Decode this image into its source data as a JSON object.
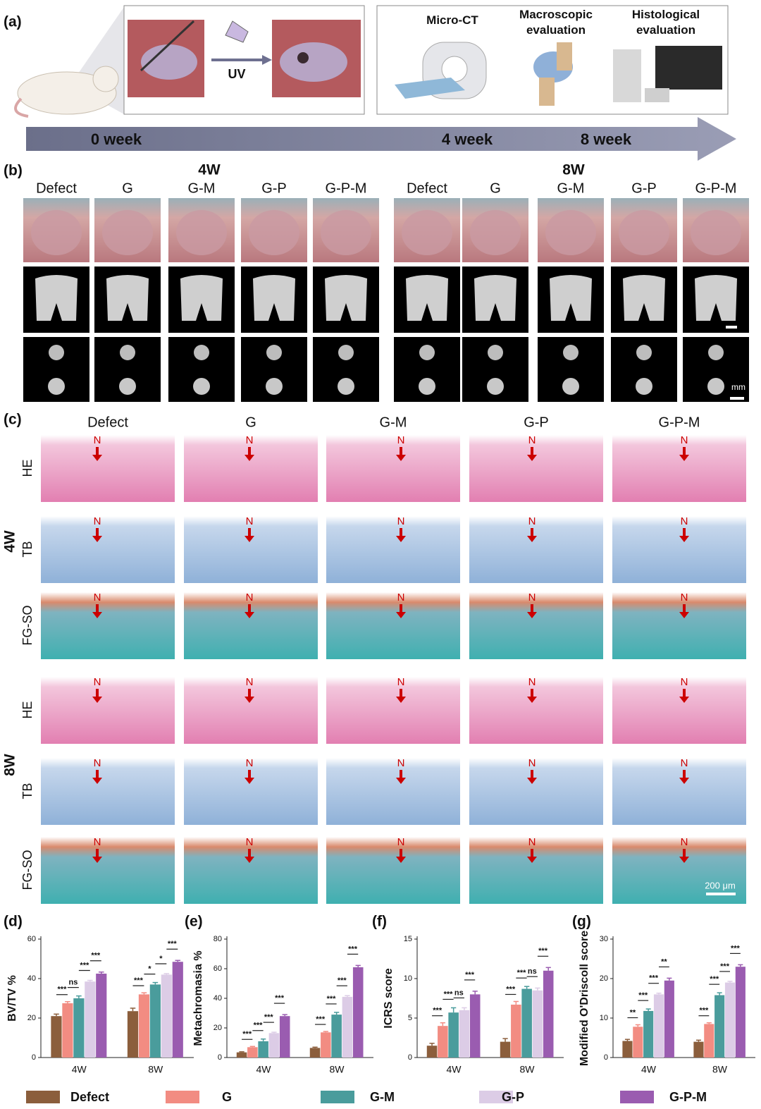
{
  "panel_a": {
    "label": "(a)",
    "uv": "UV",
    "steps": [
      [
        "Micro-CT"
      ],
      [
        "Macroscopic",
        "evaluation"
      ],
      [
        "Histological",
        "evaluation"
      ]
    ],
    "timeline": [
      "0 week",
      "4 week",
      "8 week"
    ]
  },
  "panel_b": {
    "label": "(b)",
    "timepoints": [
      "4W",
      "8W"
    ],
    "groups": [
      "Defect",
      "G",
      "G-M",
      "G-P",
      "G-P-M"
    ],
    "scale": "mm"
  },
  "panel_c": {
    "label": "(c)",
    "groups": [
      "Defect",
      "G",
      "G-M",
      "G-P",
      "G-P-M"
    ],
    "stains": [
      "HE",
      "TB",
      "FG-SO"
    ],
    "timepoints": [
      "4W",
      "8W"
    ],
    "marker": "N",
    "scale": "200 μm"
  },
  "chart_data": [
    {
      "type": "bar",
      "panel": "(d)",
      "ylabel": "BV/TV %",
      "categories": [
        "4W",
        "8W"
      ],
      "ylim": [
        0,
        60
      ],
      "yticks": [
        0,
        20,
        40,
        60
      ],
      "series": [
        {
          "name": "Defect",
          "color": "#8b5e3c",
          "values": [
            21,
            23.5
          ],
          "errors": [
            1,
            1.5
          ]
        },
        {
          "name": "G",
          "color": "#f28c82",
          "values": [
            27.5,
            32
          ],
          "errors": [
            0.8,
            0.8
          ]
        },
        {
          "name": "G-M",
          "color": "#4a9c9c",
          "values": [
            30,
            37
          ],
          "errors": [
            1.2,
            1
          ]
        },
        {
          "name": "G-P",
          "color": "#dccce6",
          "values": [
            38.5,
            42
          ],
          "errors": [
            0.6,
            0.5
          ]
        },
        {
          "name": "G-P-M",
          "color": "#9a5cb0",
          "values": [
            42.5,
            48.5
          ],
          "errors": [
            0.8,
            0.7
          ]
        }
      ],
      "significance": [
        [
          "***",
          "ns",
          "***",
          "***"
        ],
        [
          "***",
          "*",
          "*",
          "***"
        ]
      ]
    },
    {
      "type": "bar",
      "panel": "(e)",
      "ylabel": "Metachromasia %",
      "categories": [
        "4W",
        "8W"
      ],
      "ylim": [
        0,
        80
      ],
      "yticks": [
        0,
        20,
        40,
        60,
        80
      ],
      "series": [
        {
          "name": "Defect",
          "color": "#8b5e3c",
          "values": [
            3.5,
            6.5
          ],
          "errors": [
            0.4,
            0.5
          ]
        },
        {
          "name": "G",
          "color": "#f28c82",
          "values": [
            7,
            17
          ],
          "errors": [
            0.5,
            0.6
          ]
        },
        {
          "name": "G-M",
          "color": "#4a9c9c",
          "values": [
            11,
            29
          ],
          "errors": [
            1.5,
            1.5
          ]
        },
        {
          "name": "G-P",
          "color": "#dccce6",
          "values": [
            16.5,
            41
          ],
          "errors": [
            0.6,
            0.8
          ]
        },
        {
          "name": "G-P-M",
          "color": "#9a5cb0",
          "values": [
            28,
            61
          ],
          "errors": [
            1,
            1.2
          ]
        }
      ],
      "significance": [
        [
          "***",
          "***",
          "***",
          "***"
        ],
        [
          "***",
          "***",
          "***",
          "***"
        ]
      ]
    },
    {
      "type": "bar",
      "panel": "(f)",
      "ylabel": "ICRS score",
      "categories": [
        "4W",
        "8W"
      ],
      "ylim": [
        0,
        15
      ],
      "yticks": [
        0,
        5,
        10,
        15
      ],
      "series": [
        {
          "name": "Defect",
          "color": "#8b5e3c",
          "values": [
            1.5,
            2
          ],
          "errors": [
            0.3,
            0.4
          ]
        },
        {
          "name": "G",
          "color": "#f28c82",
          "values": [
            4,
            6.7
          ],
          "errors": [
            0.4,
            0.4
          ]
        },
        {
          "name": "G-M",
          "color": "#4a9c9c",
          "values": [
            5.7,
            8.7
          ],
          "errors": [
            0.6,
            0.3
          ]
        },
        {
          "name": "G-P",
          "color": "#dccce6",
          "values": [
            6,
            8.5
          ],
          "errors": [
            0.3,
            0.3
          ]
        },
        {
          "name": "G-P-M",
          "color": "#9a5cb0",
          "values": [
            8,
            11
          ],
          "errors": [
            0.4,
            0.4
          ]
        }
      ],
      "significance": [
        [
          "***",
          "***",
          "ns",
          "***"
        ],
        [
          "***",
          "***",
          "ns",
          "***"
        ]
      ]
    },
    {
      "type": "bar",
      "panel": "(g)",
      "ylabel": "Modified O'Driscoll score",
      "categories": [
        "4W",
        "8W"
      ],
      "ylim": [
        0,
        30
      ],
      "yticks": [
        0,
        10,
        20,
        30
      ],
      "series": [
        {
          "name": "Defect",
          "color": "#8b5e3c",
          "values": [
            4.2,
            4
          ],
          "errors": [
            0.4,
            0.4
          ]
        },
        {
          "name": "G",
          "color": "#f28c82",
          "values": [
            7.8,
            8.5
          ],
          "errors": [
            0.5,
            0.3
          ]
        },
        {
          "name": "G-M",
          "color": "#4a9c9c",
          "values": [
            11.8,
            15.8
          ],
          "errors": [
            0.5,
            0.6
          ]
        },
        {
          "name": "G-P",
          "color": "#dccce6",
          "values": [
            16,
            19
          ],
          "errors": [
            0.3,
            0.3
          ]
        },
        {
          "name": "G-P-M",
          "color": "#9a5cb0",
          "values": [
            19.5,
            23
          ],
          "errors": [
            0.6,
            0.5
          ]
        }
      ],
      "significance": [
        [
          "**",
          "***",
          "***",
          "**"
        ],
        [
          "***",
          "***",
          "***",
          "***"
        ]
      ]
    }
  ]
}
